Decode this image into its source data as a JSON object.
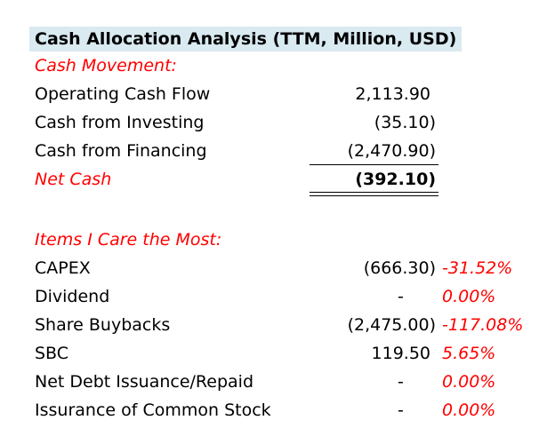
{
  "title": "Cash Allocation Analysis (TTM, Million, USD)",
  "cash_movement": {
    "heading": "Cash Movement:",
    "rows": [
      {
        "label": "Operating Cash Flow",
        "value": "2,113.90"
      },
      {
        "label": "Cash from Investing",
        "value": "(35.10)"
      },
      {
        "label": "Cash from Financing",
        "value": "(2,470.90)"
      }
    ],
    "net": {
      "label": "Net Cash",
      "value": "(392.10)"
    }
  },
  "items": {
    "heading": "Items I Care the Most:",
    "rows": [
      {
        "label": "CAPEX",
        "value": "(666.30)",
        "pct": "-31.52%"
      },
      {
        "label": "Dividend",
        "value": "-",
        "pct": "0.00%"
      },
      {
        "label": "Share Buybacks",
        "value": "(2,475.00)",
        "pct": "-117.08%"
      },
      {
        "label": "SBC",
        "value": "119.50",
        "pct": "5.65%"
      },
      {
        "label": "Net Debt Issuance/Repaid",
        "value": "-",
        "pct": "0.00%"
      },
      {
        "label": "Issurance of Common Stock",
        "value": "-",
        "pct": "0.00%"
      }
    ]
  },
  "colors": {
    "accent_red": "#ff0000",
    "title_background": "#d9eaf1"
  }
}
